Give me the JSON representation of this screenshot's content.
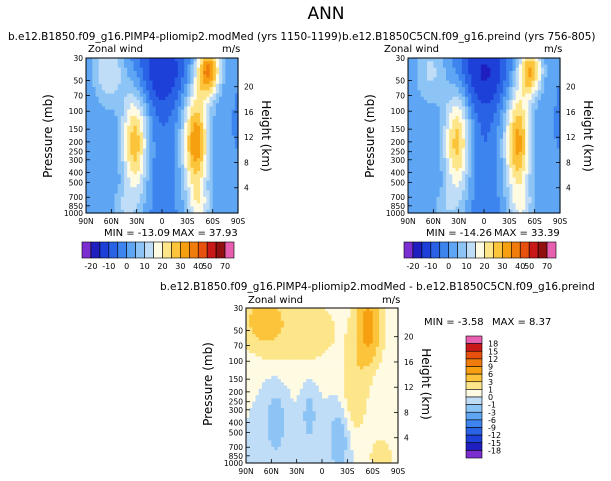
{
  "page_title": "ANN",
  "colors": {
    "abs_levels": [
      -20,
      -15,
      -10,
      -5,
      0,
      5,
      10,
      15,
      20,
      25,
      30,
      35,
      40,
      50,
      60,
      70
    ],
    "abs_palette": [
      "#7b2fd0",
      "#1f1fbf",
      "#1c40d8",
      "#2a62e6",
      "#3d84ef",
      "#5ea6f3",
      "#8dc4f6",
      "#c0ddf7",
      "#fffbe3",
      "#fde58a",
      "#fbc43a",
      "#f6a011",
      "#f07c0c",
      "#e8500d",
      "#c81818",
      "#900f0f",
      "#e85fb0"
    ],
    "diff_levels": [
      -18,
      -15,
      -12,
      -9,
      -6,
      -3,
      -1,
      0,
      1,
      3,
      6,
      9,
      12,
      15,
      18
    ],
    "diff_palette": [
      "#7b2fd0",
      "#1f1fbf",
      "#1c40d8",
      "#2a62e6",
      "#3d84ef",
      "#5ea6f3",
      "#8dc4f6",
      "#c0ddf7",
      "#fffbe3",
      "#fde58a",
      "#fbc43a",
      "#f6a011",
      "#f07c0c",
      "#e8500d",
      "#c81818",
      "#e85fb0"
    ]
  },
  "chart_data": [
    {
      "type": "heatmap",
      "title": "b.e12.B1850.f09_g16.PIMP4-pliomip2.modMed (yrs 1150-1199)",
      "left_label": "Zonal wind",
      "right_label": "m/s",
      "ylabel": "Pressure (mb)",
      "ylabel_right": "Height (km)",
      "x_ticks": [
        "90N",
        "60N",
        "30N",
        "0",
        "30S",
        "60S",
        "90S"
      ],
      "y_ticks": [
        "30",
        "50",
        "70",
        "100",
        "150",
        "200",
        "250",
        "300",
        "400",
        "500",
        "700",
        "850",
        "1000"
      ],
      "height_ticks": [
        "4",
        "8",
        "12",
        "16",
        "20"
      ],
      "xlim": [
        90,
        -90
      ],
      "ylim_mb": [
        1000,
        30
      ],
      "min_label": "MIN = -13.09",
      "max_label": "MAX = 37.93",
      "min": -13.09,
      "max": 37.93,
      "colorbar_ticks": [
        "-20",
        "-10",
        "0",
        "10",
        "20",
        "30",
        "40",
        "50",
        "70"
      ],
      "features": [
        {
          "lat": 32,
          "p": 200,
          "peak": 28,
          "wlat": 11,
          "wlogp": 0.38
        },
        {
          "lat": -40,
          "p": 200,
          "peak": 34,
          "wlat": 11,
          "wlogp": 0.4
        },
        {
          "lat": -55,
          "p": 40,
          "peak": 36,
          "wlat": 10,
          "wlogp": 0.18
        },
        {
          "lat": 62,
          "p": 40,
          "peak": 16,
          "wlat": 14,
          "wlogp": 0.25
        },
        {
          "lat": 45,
          "p": 850,
          "peak": 8,
          "wlat": 12,
          "wlogp": 0.12
        },
        {
          "lat": -45,
          "p": 850,
          "peak": 10,
          "wlat": 10,
          "wlogp": 0.12
        },
        {
          "lat": 0,
          "p": 40,
          "peak": -13,
          "wlat": 28,
          "wlogp": 0.28
        },
        {
          "lat": 0,
          "p": 300,
          "peak": -4,
          "wlat": 12,
          "wlogp": 0.6
        }
      ]
    },
    {
      "type": "heatmap",
      "title": "b.e12.B1850C5CN.f09_g16.preind (yrs 756-805)",
      "left_label": "Zonal wind",
      "right_label": "m/s",
      "ylabel": "Pressure (mb)",
      "ylabel_right": "Height (km)",
      "x_ticks": [
        "90N",
        "60N",
        "30N",
        "0",
        "30S",
        "60S",
        "90S"
      ],
      "y_ticks": [
        "30",
        "50",
        "70",
        "100",
        "150",
        "200",
        "250",
        "300",
        "400",
        "500",
        "700",
        "850",
        "1000"
      ],
      "height_ticks": [
        "4",
        "8",
        "12",
        "16",
        "20"
      ],
      "xlim": [
        90,
        -90
      ],
      "ylim_mb": [
        1000,
        30
      ],
      "min_label": "MIN = -14.26",
      "max_label": "MAX = 33.39",
      "min": -14.26,
      "max": 33.39,
      "colorbar_ticks": [
        "-20",
        "-10",
        "0",
        "10",
        "20",
        "30",
        "40",
        "50",
        "70"
      ],
      "features": [
        {
          "lat": 32,
          "p": 200,
          "peak": 27,
          "wlat": 11,
          "wlogp": 0.38
        },
        {
          "lat": -40,
          "p": 200,
          "peak": 32,
          "wlat": 11,
          "wlogp": 0.4
        },
        {
          "lat": -55,
          "p": 40,
          "peak": 30,
          "wlat": 10,
          "wlogp": 0.18
        },
        {
          "lat": 62,
          "p": 40,
          "peak": 12,
          "wlat": 14,
          "wlogp": 0.25
        },
        {
          "lat": 45,
          "p": 850,
          "peak": 7,
          "wlat": 12,
          "wlogp": 0.12
        },
        {
          "lat": -45,
          "p": 850,
          "peak": 9,
          "wlat": 10,
          "wlogp": 0.12
        },
        {
          "lat": 0,
          "p": 40,
          "peak": -14,
          "wlat": 28,
          "wlogp": 0.28
        },
        {
          "lat": 0,
          "p": 300,
          "peak": -5,
          "wlat": 12,
          "wlogp": 0.6
        }
      ]
    },
    {
      "type": "heatmap",
      "title": "b.e12.B1850.f09_g16.PIMP4-pliomip2.modMed - b.e12.B1850C5CN.f09_g16.preind",
      "left_label": "Zonal wind",
      "right_label": "m/s",
      "ylabel": "Pressure (mb)",
      "ylabel_right": "Height (km)",
      "x_ticks": [
        "90N",
        "60N",
        "30N",
        "0",
        "30S",
        "60S",
        "90S"
      ],
      "y_ticks": [
        "30",
        "50",
        "70",
        "100",
        "150",
        "200",
        "250",
        "300",
        "400",
        "500",
        "700",
        "850",
        "1000"
      ],
      "height_ticks": [
        "4",
        "8",
        "12",
        "16",
        "20"
      ],
      "xlim": [
        90,
        -90
      ],
      "ylim_mb": [
        1000,
        30
      ],
      "min_label": "MIN = -3.58",
      "max_label": "MAX = 8.37",
      "min": -3.58,
      "max": 8.37,
      "colorbar_ticks": [
        "18",
        "15",
        "12",
        "9",
        "6",
        "3",
        "1",
        "0",
        "-1",
        "-3",
        "-6",
        "-9",
        "-12",
        "-15",
        "-18"
      ],
      "features": [
        {
          "lat": -55,
          "p": 45,
          "peak": 7.5,
          "wlat": 10,
          "wlogp": 0.25
        },
        {
          "lat": -40,
          "p": 180,
          "peak": 2.5,
          "wlat": 10,
          "wlogp": 0.3
        },
        {
          "lat": 70,
          "p": 40,
          "peak": 4.0,
          "wlat": 18,
          "wlogp": 0.2
        },
        {
          "lat": 20,
          "p": 50,
          "peak": 2.0,
          "wlat": 30,
          "wlogp": 0.25
        },
        {
          "lat": 55,
          "p": 400,
          "peak": -2.0,
          "wlat": 8,
          "wlogp": 0.22
        },
        {
          "lat": 15,
          "p": 350,
          "peak": -1.6,
          "wlat": 6,
          "wlogp": 0.2
        },
        {
          "lat": -20,
          "p": 600,
          "peak": -2.2,
          "wlat": 8,
          "wlogp": 0.2
        },
        {
          "lat": -70,
          "p": 850,
          "peak": 3.0,
          "wlat": 8,
          "wlogp": 0.1
        }
      ]
    }
  ]
}
